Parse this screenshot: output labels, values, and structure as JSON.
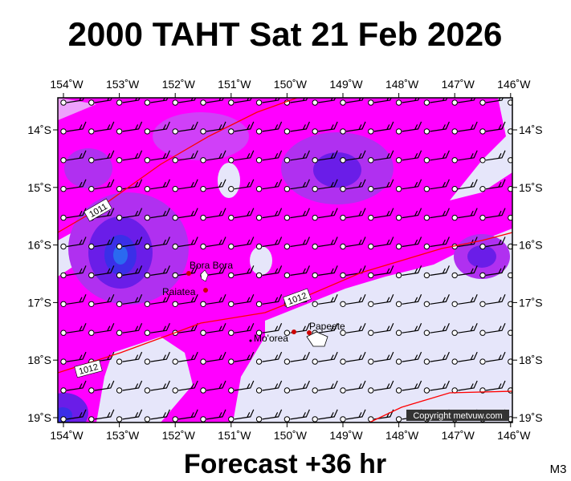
{
  "title": "2000 TAHT Sat 21 Feb 2026",
  "lon_labels": [
    "154˚W",
    "153˚W",
    "152˚W",
    "151˚W",
    "150˚W",
    "149˚W",
    "148˚W",
    "147˚W",
    "146˚W"
  ],
  "lat_labels": [
    "14˚S",
    "15˚S",
    "16˚S",
    "17˚S",
    "18˚S",
    "19˚S"
  ],
  "places": [
    "Bora Bora",
    "Raiatea",
    "Mo'orea",
    "Papeete"
  ],
  "isobar_labels": [
    "1011",
    "1012",
    "1012"
  ],
  "copyright": "Copyright metvuw.com",
  "footer": "Forecast +36 hr",
  "code": "M3"
}
